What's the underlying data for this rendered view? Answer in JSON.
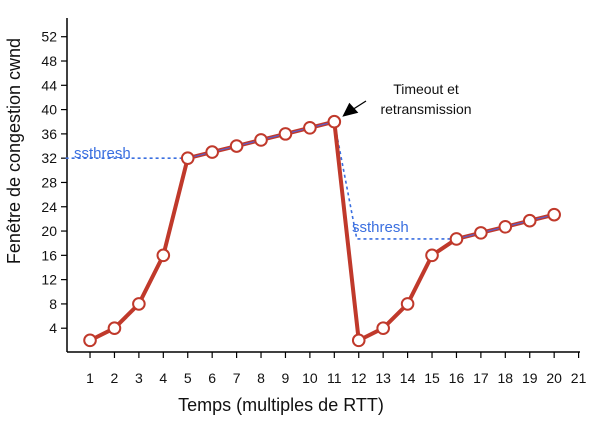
{
  "chart_data": {
    "type": "line",
    "title": "",
    "xlabel": "Temps (multiples de RTT)",
    "ylabel": "Fenêtre de congestion cwnd",
    "xlim": [
      0,
      21
    ],
    "ylim": [
      0,
      55
    ],
    "x_ticks": [
      1,
      2,
      3,
      4,
      5,
      6,
      7,
      8,
      9,
      10,
      11,
      12,
      13,
      14,
      15,
      16,
      17,
      18,
      19,
      20,
      21
    ],
    "y_ticks": [
      4,
      8,
      12,
      16,
      20,
      24,
      28,
      32,
      36,
      40,
      44,
      48,
      52
    ],
    "grid": false,
    "legend": "none",
    "series": [
      {
        "x": [
          1,
          2,
          3,
          4,
          5,
          6,
          7,
          8,
          9,
          10,
          11,
          12,
          13,
          14,
          15,
          16,
          17,
          18,
          19,
          20
        ],
        "y": [
          2,
          4,
          8,
          16,
          32,
          33,
          34,
          35,
          36,
          37,
          38,
          2,
          4,
          8,
          16,
          18.7,
          19.7,
          20.7,
          21.7,
          22.7
        ],
        "color": "#c0392b"
      }
    ],
    "ssthresh_lines": [
      {
        "label": "ssthresh",
        "value": 32,
        "x_start": 0,
        "x_end": 5
      },
      {
        "label": "ssthresh",
        "value": 18.7,
        "x_start": 11,
        "x_end": 16
      }
    ],
    "annotations": [
      {
        "lines": [
          "Timeout et",
          "retransmission"
        ],
        "at_x": 11,
        "at_y": 38
      }
    ],
    "colors": {
      "line": "#c0392b",
      "marker_fill": "#ffffff",
      "ssthresh": "#3a6fe0",
      "ssthresh_linear_overlay": "#5a5fd0",
      "axis": "#000000"
    }
  }
}
